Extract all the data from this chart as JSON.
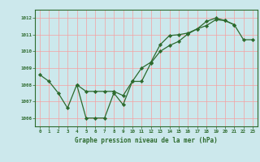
{
  "title": "Graphe pression niveau de la mer (hPa)",
  "xlabel_hours": [
    0,
    1,
    2,
    3,
    4,
    5,
    6,
    7,
    8,
    9,
    10,
    11,
    12,
    13,
    14,
    15,
    16,
    17,
    18,
    19,
    20,
    21,
    22,
    23
  ],
  "series1": {
    "x": [
      0,
      1,
      2,
      3,
      4,
      5,
      6,
      7,
      8,
      9,
      10,
      11,
      12,
      13,
      14,
      15,
      16,
      17,
      18,
      19,
      20,
      21
    ],
    "y": [
      1008.6,
      1008.2,
      1007.5,
      1006.6,
      1008.0,
      1006.0,
      1006.0,
      1006.0,
      1007.5,
      1006.8,
      1008.2,
      1009.0,
      1009.35,
      1010.4,
      1010.95,
      1011.0,
      1011.1,
      1011.35,
      1011.8,
      1012.0,
      1011.85,
      1011.6
    ]
  },
  "series2": {
    "x": [
      4,
      5,
      6,
      7,
      8,
      9,
      10,
      11,
      12,
      13,
      14,
      15,
      16,
      17,
      18,
      19,
      20,
      21,
      22,
      23
    ],
    "y": [
      1008.0,
      1007.6,
      1007.6,
      1007.6,
      1007.6,
      1007.35,
      1008.2,
      1008.2,
      1009.3,
      1010.0,
      1010.35,
      1010.6,
      1011.05,
      1011.35,
      1011.55,
      1011.9,
      1011.85,
      1011.6,
      1010.7,
      1010.7
    ]
  },
  "ylim": [
    1005.5,
    1012.5
  ],
  "yticks": [
    1006,
    1007,
    1008,
    1009,
    1010,
    1011,
    1012
  ],
  "xlim": [
    -0.5,
    23.5
  ],
  "line_color": "#2d6a2d",
  "marker_color": "#2d6a2d",
  "bg_color": "#cce8ec",
  "grid_color_v": "#f5a0a0",
  "grid_color_h": "#f5a0a0",
  "tick_label_color": "#2d6a2d",
  "title_color": "#2d6a2d",
  "spine_color": "#2d6a2d"
}
